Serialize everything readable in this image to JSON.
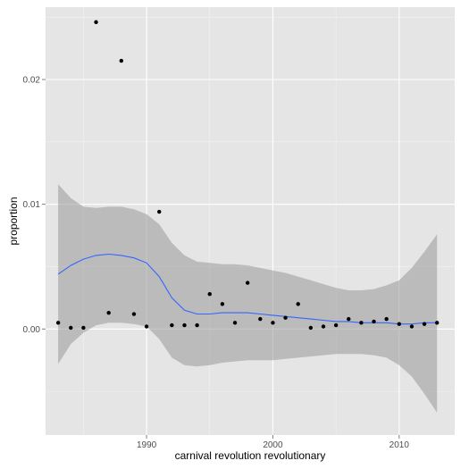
{
  "chart_data": {
    "type": "scatter",
    "title": "",
    "xlabel": "carnival revolution revolutionary",
    "ylabel": "proportion",
    "xlim": [
      1982.0,
      2014.4
    ],
    "ylim": [
      -0.0085,
      0.0258
    ],
    "x_ticks": [
      1990,
      2000,
      2010
    ],
    "x_tick_labels": [
      "1990",
      "2000",
      "2010"
    ],
    "y_ticks": [
      0.0,
      0.01,
      0.02
    ],
    "y_tick_labels": [
      "0.00",
      "0.01",
      "0.02"
    ],
    "grid": true,
    "legend": "none",
    "colors": {
      "panel": "#e5e5e5",
      "grid_major": "#ffffff",
      "grid_minor": "#f2f2f2",
      "point": "#000000",
      "smooth_line": "#3366ff",
      "confidence_band": "#999999"
    },
    "points": {
      "x": [
        1983,
        1984,
        1985,
        1986,
        1987,
        1988,
        1989,
        1990,
        1991,
        1992,
        1993,
        1994,
        1995,
        1996,
        1997,
        1998,
        1999,
        2000,
        2001,
        2002,
        2003,
        2004,
        2005,
        2006,
        2007,
        2008,
        2009,
        2010,
        2011,
        2012,
        2013
      ],
      "y": [
        0.0005,
        0.0001,
        0.0001,
        0.0246,
        0.0013,
        0.0215,
        0.0012,
        0.0002,
        0.0094,
        0.0003,
        0.0003,
        0.0003,
        0.0028,
        0.002,
        0.0005,
        0.0037,
        0.0008,
        0.0005,
        0.0009,
        0.002,
        0.0001,
        0.0002,
        0.0003,
        0.0008,
        0.0005,
        0.0006,
        0.0008,
        0.0004,
        0.0002,
        0.0004,
        0.0005
      ]
    },
    "smooth": {
      "x": [
        1983,
        1984,
        1985,
        1986,
        1987,
        1988,
        1989,
        1990,
        1991,
        1992,
        1993,
        1994,
        1995,
        1996,
        1997,
        1998,
        1999,
        2000,
        2001,
        2002,
        2003,
        2004,
        2005,
        2006,
        2007,
        2008,
        2009,
        2010,
        2011,
        2012,
        2013
      ],
      "y": [
        0.0044,
        0.0051,
        0.0056,
        0.0059,
        0.006,
        0.0059,
        0.0057,
        0.0053,
        0.0042,
        0.0025,
        0.0015,
        0.0012,
        0.0012,
        0.0013,
        0.0013,
        0.0013,
        0.0012,
        0.0011,
        0.001,
        0.0009,
        0.0008,
        0.0007,
        0.0006,
        0.0006,
        0.0005,
        0.0005,
        0.0005,
        0.0004,
        0.0004,
        0.0005,
        0.0005
      ],
      "lower": [
        -0.0028,
        -0.0012,
        -0.0003,
        0.0003,
        0.0005,
        0.0005,
        0.0004,
        0.0002,
        -0.0008,
        -0.0023,
        -0.0029,
        -0.003,
        -0.0029,
        -0.0027,
        -0.0026,
        -0.0025,
        -0.0025,
        -0.0025,
        -0.0024,
        -0.0023,
        -0.0022,
        -0.0021,
        -0.002,
        -0.002,
        -0.002,
        -0.0021,
        -0.0023,
        -0.0029,
        -0.0038,
        -0.0052,
        -0.0067
      ],
      "upper": [
        0.0116,
        0.0105,
        0.0098,
        0.0097,
        0.0098,
        0.0098,
        0.0096,
        0.0092,
        0.0084,
        0.0069,
        0.0059,
        0.0054,
        0.0053,
        0.0052,
        0.0052,
        0.0051,
        0.0049,
        0.0047,
        0.0045,
        0.0042,
        0.0039,
        0.0036,
        0.0033,
        0.0031,
        0.0031,
        0.0032,
        0.0035,
        0.0039,
        0.0049,
        0.0062,
        0.0076
      ]
    }
  }
}
